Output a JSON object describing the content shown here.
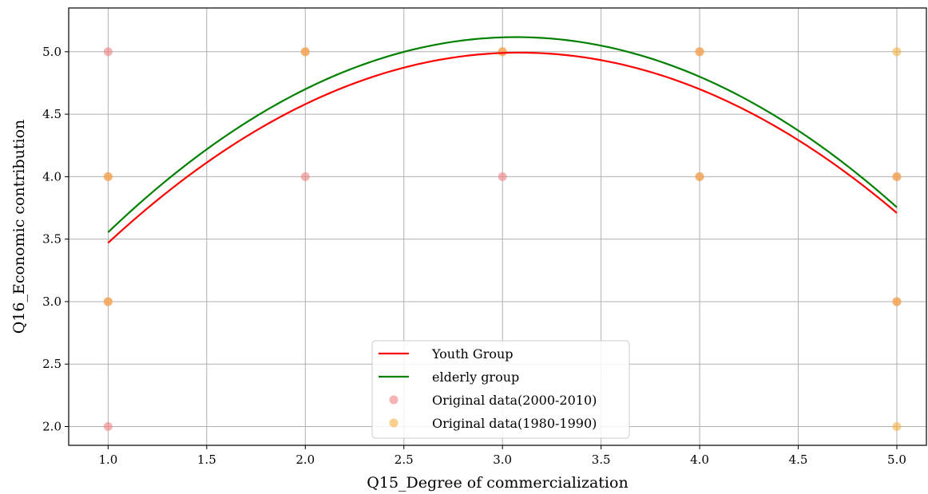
{
  "chart_data": {
    "type": "scatter",
    "title": "",
    "xlabel": "Q15_Degree of commercialization",
    "ylabel": "Q16_Economic contribution",
    "xlim": [
      0.8,
      5.15
    ],
    "ylim": [
      1.85,
      5.35
    ],
    "xticks": [
      "1.0",
      "1.5",
      "2.0",
      "2.5",
      "3.0",
      "3.5",
      "4.0",
      "4.5",
      "5.0"
    ],
    "yticks": [
      "2.0",
      "2.5",
      "3.0",
      "3.5",
      "4.0",
      "4.5",
      "5.0"
    ],
    "grid": true,
    "legend_position": "lower center",
    "series": [
      {
        "name": "Youth Group",
        "kind": "line",
        "color": "#ff0000",
        "poly": [
          -0.35,
          2.16,
          1.66
        ]
      },
      {
        "name": "elderly group",
        "kind": "line",
        "color": "#008000",
        "poly": [
          -0.365,
          2.24,
          1.68
        ]
      },
      {
        "name": "Original data(2000-2010)",
        "kind": "scatter",
        "color": "#f08080",
        "alpha": 0.6,
        "points": [
          [
            1,
            5
          ],
          [
            1,
            4
          ],
          [
            1,
            3
          ],
          [
            1,
            2
          ],
          [
            2,
            5
          ],
          [
            2,
            4
          ],
          [
            3,
            5
          ],
          [
            3,
            4
          ],
          [
            4,
            5
          ],
          [
            4,
            4
          ],
          [
            5,
            4
          ],
          [
            5,
            3
          ]
        ]
      },
      {
        "name": "Original data(1980-1990)",
        "kind": "scatter",
        "color": "#f5b041",
        "alpha": 0.6,
        "points": [
          [
            1,
            4
          ],
          [
            1,
            3
          ],
          [
            2,
            5
          ],
          [
            3,
            5
          ],
          [
            4,
            5
          ],
          [
            4,
            4
          ],
          [
            5,
            5
          ],
          [
            5,
            4
          ],
          [
            5,
            3
          ],
          [
            5,
            2
          ]
        ]
      }
    ]
  }
}
